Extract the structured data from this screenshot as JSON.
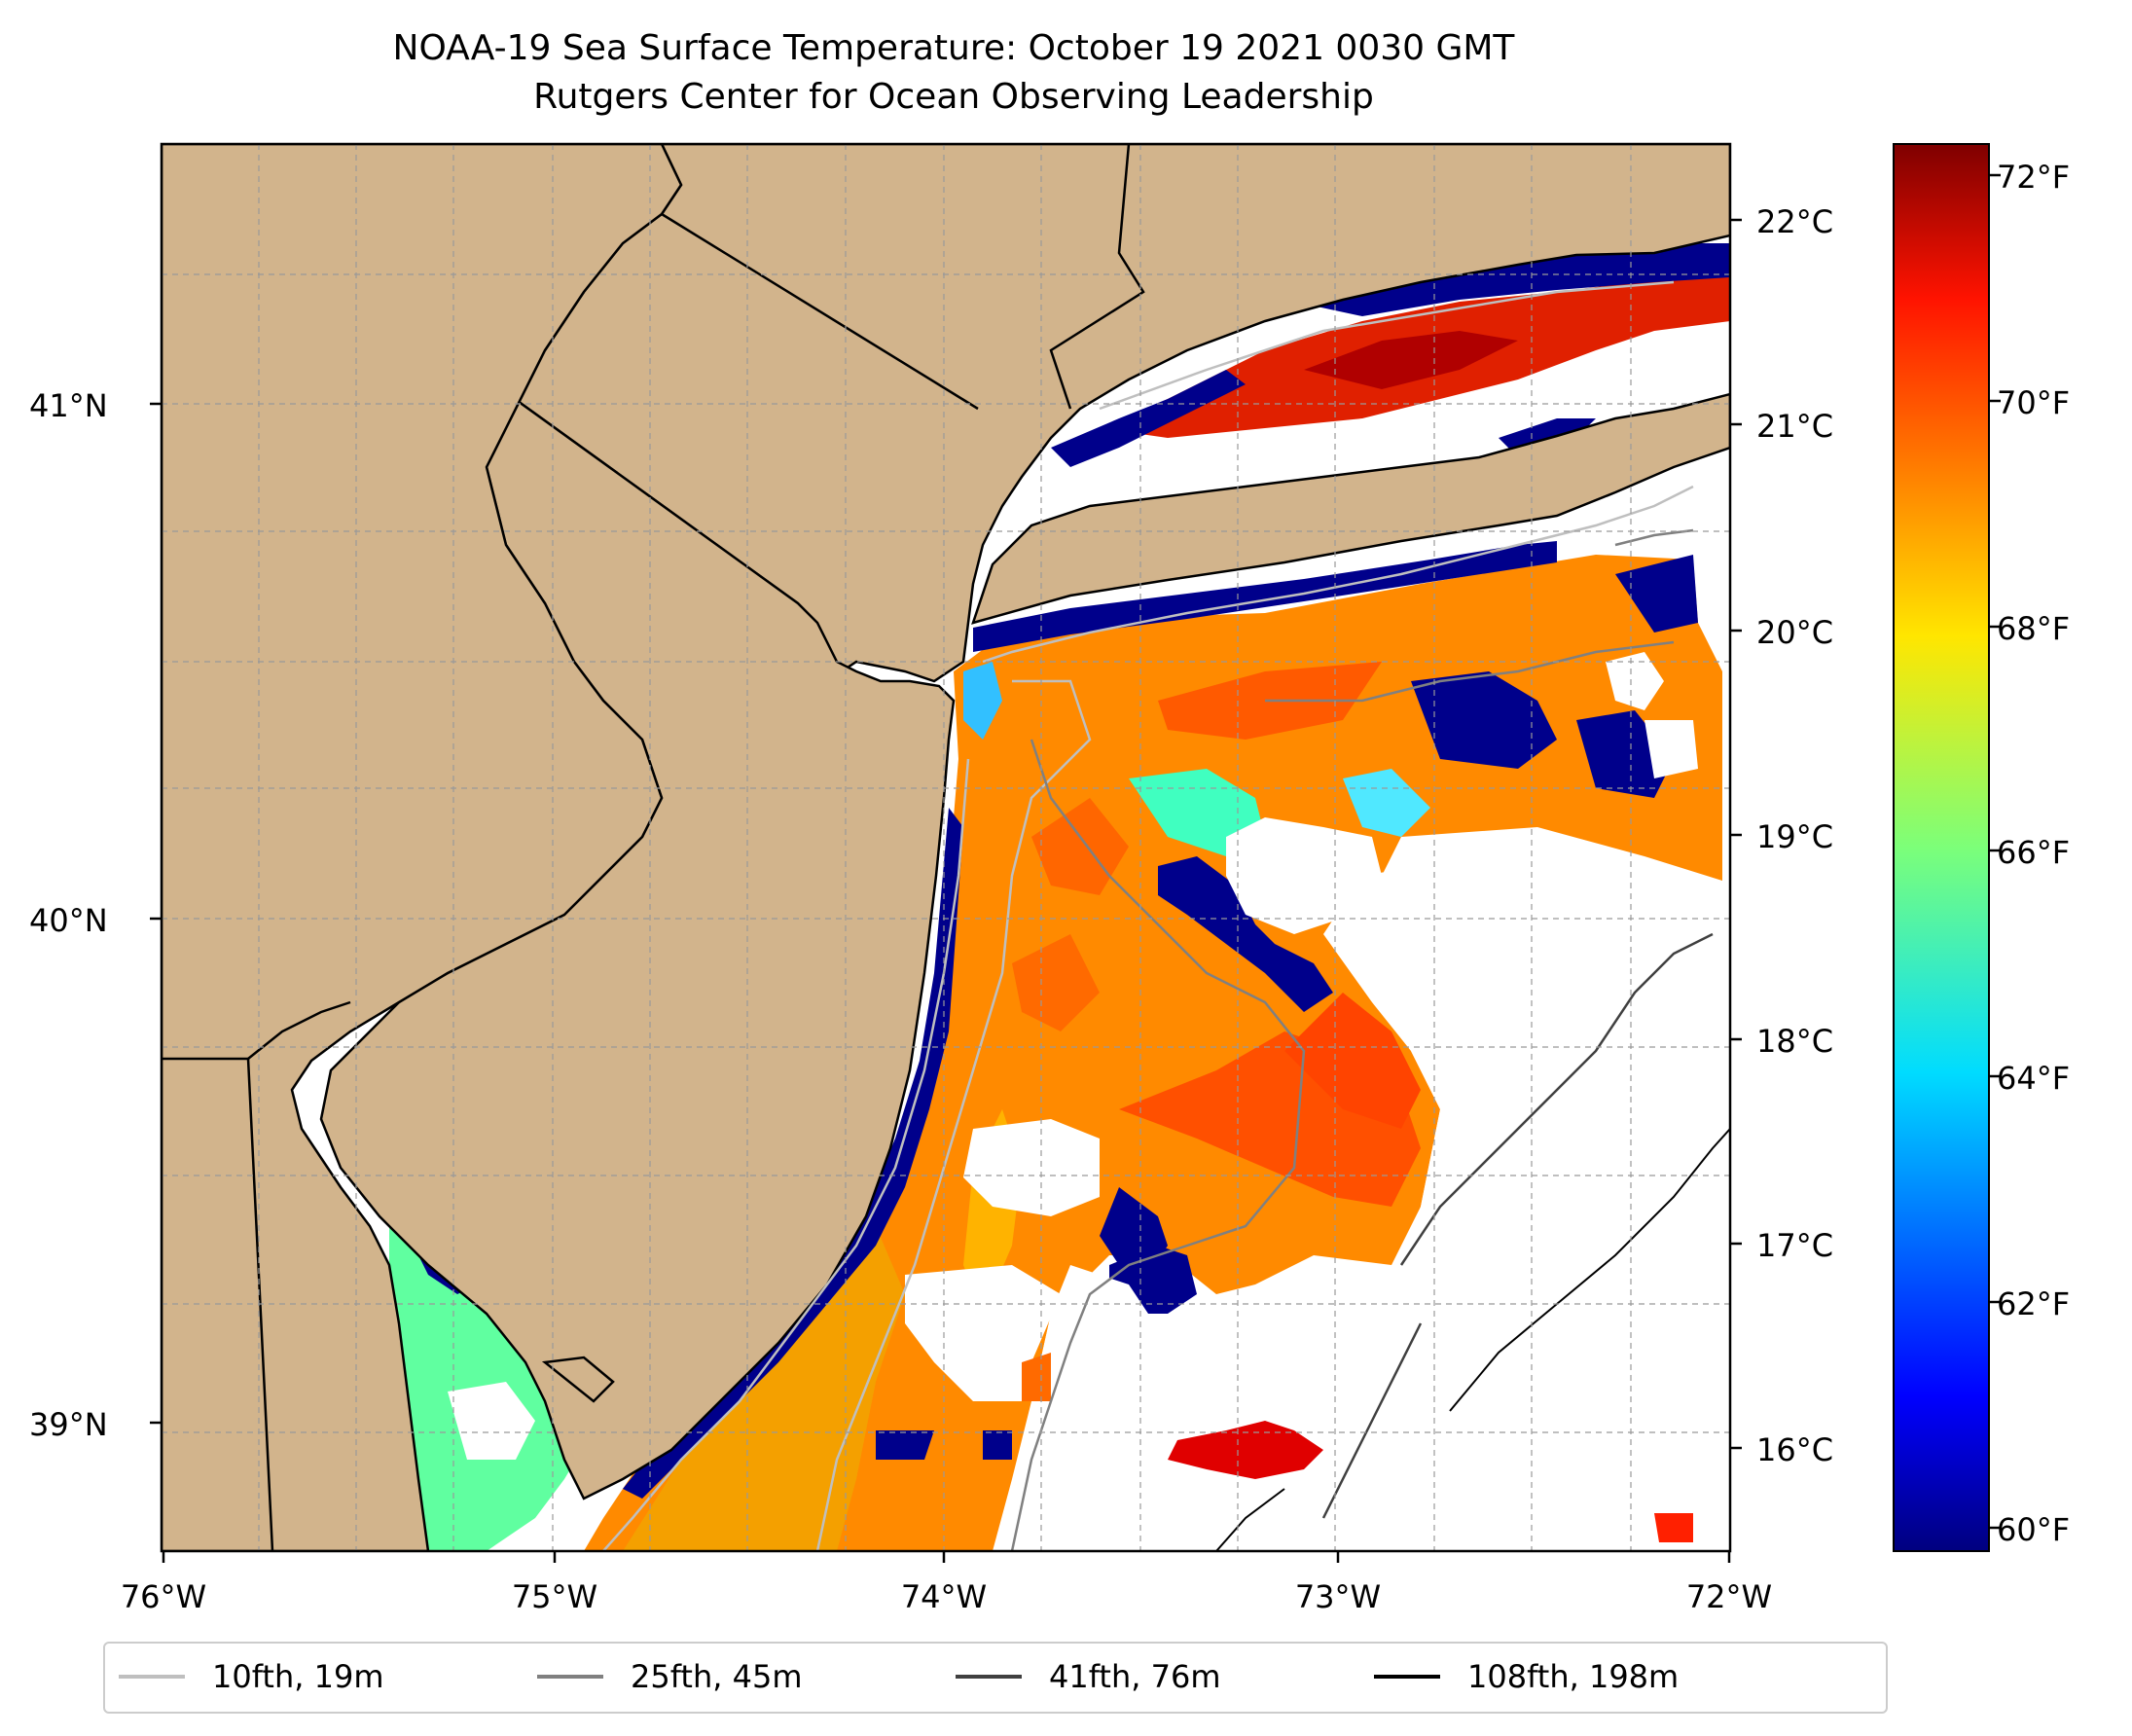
{
  "title_line1": "NOAA-19 Sea Surface Temperature: October 19 2021 0030 GMT",
  "title_line2": "Rutgers Center for Ocean Observing Leadership",
  "longitude_ticks": [
    "76°W",
    "75°W",
    "74°W",
    "73°W",
    "72°W"
  ],
  "latitude_ticks": [
    "41°N",
    "40°N",
    "39°N"
  ],
  "colorbar_celsius_ticks": [
    "22°C",
    "21°C",
    "20°C",
    "19°C",
    "18°C",
    "17°C",
    "16°C"
  ],
  "colorbar_fahrenheit_ticks": [
    "72°F",
    "70°F",
    "68°F",
    "66°F",
    "64°F",
    "62°F",
    "60°F"
  ],
  "colorbar_range_f": [
    59.8,
    72.3
  ],
  "colormap": "jet",
  "colors": {
    "land": "#d2b48c",
    "coast": "#000000",
    "grid": "#aaaaaa"
  },
  "isobath_legend": [
    {
      "label": "10fth, 19m",
      "color": "#bfbfbf"
    },
    {
      "label": "25fth, 45m",
      "color": "#808080"
    },
    {
      "label": "41fth, 76m",
      "color": "#404040"
    },
    {
      "label": "108fth, 198m",
      "color": "#000000"
    }
  ]
}
